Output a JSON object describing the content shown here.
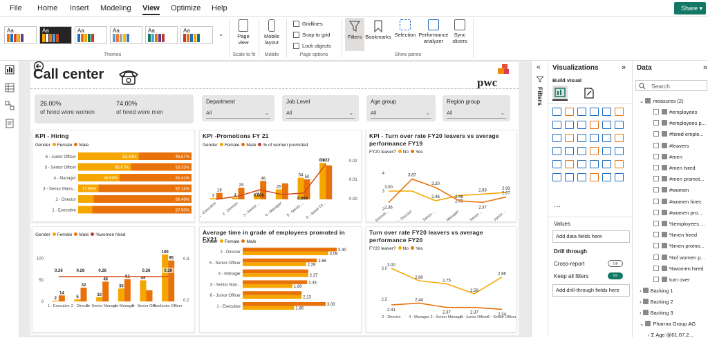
{
  "menu": {
    "items": [
      "File",
      "Home",
      "Insert",
      "Modeling",
      "View",
      "Optimize",
      "Help"
    ],
    "active": "View",
    "share": "Share"
  },
  "ribbon": {
    "themes_label": "Themes",
    "page_view": "Page view",
    "scale_label": "Scale to fit",
    "mobile_layout": "Mobile layout",
    "mobile_label": "Mobile",
    "gridlines": "Gridlines",
    "snap": "Snap to grid",
    "lock": "Lock objects",
    "page_options": "Page options",
    "filters": "Filters",
    "bookmarks": "Bookmarks",
    "selection": "Selection",
    "performance": "Performance analyzer",
    "sync": "Sync slicers",
    "show_panes": "Show panes",
    "theme_text": "Aa"
  },
  "report": {
    "title": "Call center",
    "logo": "pwc",
    "kpi": [
      {
        "value": "26.00%",
        "label": "of hired were women"
      },
      {
        "value": "74.00%",
        "label": "of hired were men"
      }
    ],
    "slicers": [
      {
        "title": "Department",
        "value": "All"
      },
      {
        "title": "Job Level",
        "value": "All"
      },
      {
        "title": "Age group",
        "value": "All"
      },
      {
        "title": "Region group",
        "value": "All"
      }
    ],
    "colors": {
      "female": "#f5a700",
      "male": "#e8710a",
      "line": "#d24a1e",
      "dark": "#c0392b"
    }
  },
  "visuals": {
    "hiring": {
      "title": "KPI - Hiring",
      "legend_title": "Gender",
      "legend": [
        "Female",
        "Male"
      ]
    },
    "promotions": {
      "title": "KPI -Promotions FY 21",
      "legend_title": "Gender",
      "legend": [
        "Female",
        "Male",
        "% of women promoted"
      ]
    },
    "turnover19": {
      "title": "KPI - Turn over rate FY20 leavers vs average performance FY19",
      "legend_title": "FY20 leaver?",
      "legend": [
        "No",
        "Yes"
      ]
    },
    "hired_women": {
      "title": "",
      "legend_title": "Gender",
      "legend": [
        "Female",
        "Male",
        "%women hired"
      ]
    },
    "avg_time": {
      "title": "Average time in grade of employees promoted in FY21",
      "legend_title": "Gender",
      "legend": [
        "Female",
        "Male"
      ]
    },
    "turnover20": {
      "title": "Turn over rate FY20 leavers vs average performance FY20",
      "legend_title": "FY20 leaver?",
      "legend": [
        "No",
        "Yes"
      ]
    }
  },
  "chart_data": [
    {
      "type": "bar",
      "orientation": "horizontal-stacked-100",
      "title": "KPI - Hiring",
      "categories": [
        "6 - Junior Officer",
        "5 - Senior Officer",
        "4 - Manager",
        "3 - Senior Mana...",
        "2 - Director",
        "1 - Executive"
      ],
      "series": [
        {
          "name": "Female",
          "values": [
            53.43,
            46.67,
            36.59,
            17.86,
            13.51,
            12.5
          ],
          "labels": [
            "53.43%",
            "46.67%",
            "36.59%",
            "17.86%",
            "",
            ""
          ]
        },
        {
          "name": "Male",
          "values": [
            46.57,
            53.33,
            63.41,
            82.14,
            86.49,
            87.5
          ],
          "labels": [
            "46.57%",
            "53.33%",
            "63.41%",
            "82.14%",
            "86.49%",
            "87.50%"
          ]
        }
      ]
    },
    {
      "type": "bar",
      "title": "KPI -Promotions FY 21",
      "categories": [
        "1 - Executive",
        "2 - Director",
        "3 - Senior ...",
        "4 - Manager",
        "5 - Senior ...",
        "6 - Junior Of..."
      ],
      "series": [
        {
          "name": "Female",
          "values": [
            3,
            4,
            11,
            25,
            54,
            91
          ],
          "labels": [
            "3",
            "4",
            "11",
            "25",
            "54",
            "91"
          ]
        },
        {
          "name": "Male",
          "values": [
            16,
            29,
            46,
            40,
            50,
            85
          ],
          "labels": [
            "16",
            "29",
            "46",
            "",
            "50",
            ""
          ]
        },
        {
          "name": "% of women promoted",
          "values": [
            0.0,
            0.002,
            0.006,
            0.003,
            0.004,
            0.022
          ],
          "labels": [
            "",
            "",
            "0.006",
            "",
            "0.004",
            "0.022"
          ]
        }
      ],
      "y2_ticks": [
        "0.02",
        "0.01",
        "0.00"
      ]
    },
    {
      "type": "line",
      "title": "KPI - Turn over rate FY20 leavers vs average performance FY19",
      "categories": [
        "1 - Executi...",
        "2 - Director",
        "3 - Senior ...",
        "4 - Manager",
        "5 - Senior ...",
        "6 - Junior ..."
      ],
      "series": [
        {
          "name": "No",
          "values": [
            3.0,
            3.0,
            2.46,
            2.75,
            2.83,
            2.93
          ],
          "labels": [
            "3.00",
            "",
            "2.46",
            "2.75",
            "2.83",
            "2.93"
          ]
        },
        {
          "name": "Yes",
          "values": [
            2.36,
            3.67,
            3.2,
            2.46,
            2.37,
            2.67
          ],
          "labels": [
            "2.36",
            "3.67",
            "3.20",
            "2.46",
            "2.37",
            "2.67"
          ]
        }
      ],
      "y_ticks": [
        "4",
        "3",
        "2"
      ]
    },
    {
      "type": "bar",
      "title": "",
      "categories": [
        "1 - Executive",
        "2 - Director",
        "3 - Senior Manager",
        "4 - Manager",
        "5 - Senior Officer",
        "6 - Junior Officer"
      ],
      "series": [
        {
          "name": "Female",
          "values": [
            2,
            5,
            10,
            30,
            49,
            109
          ],
          "labels": [
            "2",
            "5",
            "10",
            "30",
            "49",
            "109"
          ]
        },
        {
          "name": "Male",
          "values": [
            14,
            32,
            46,
            52,
            26,
            95
          ],
          "labels": [
            "14",
            "32",
            "46",
            "52",
            "",
            "95"
          ]
        },
        {
          "name": "%women hired",
          "values": [
            0.26,
            0.26,
            0.26,
            0.26,
            0.26,
            0.26
          ],
          "labels": [
            "0.26",
            "0.26",
            "0.26",
            "",
            "0.26",
            "0.26"
          ]
        }
      ],
      "y_ticks": [
        "100",
        "50",
        "0"
      ],
      "y2_ticks": [
        "0.3",
        "0.2"
      ]
    },
    {
      "type": "bar",
      "orientation": "horizontal",
      "title": "Average time in grade of employees promoted in FY21",
      "categories": [
        "2 - Director",
        "5 - Senior Officer",
        "4 - Manager",
        "3 - Senior Man...",
        "6 - Junior Officer",
        "1 - Executive"
      ],
      "series": [
        {
          "name": "Female",
          "values": [
            3.09,
            2.29,
            2.37,
            1.8,
            2.13,
            1.86
          ],
          "labels": [
            "3.09",
            "2.29",
            "2.37",
            "1.80",
            "2.13",
            "1.86"
          ]
        },
        {
          "name": "Male",
          "values": [
            3.4,
            2.68,
            2.37,
            2.33,
            2.13,
            3.0
          ],
          "labels": [
            "3.40",
            "2.68",
            "",
            "2.33",
            "",
            "3.00"
          ]
        }
      ]
    },
    {
      "type": "line",
      "title": "Turn over rate FY20 leavers vs average performance FY20",
      "categories": [
        "2 - Director",
        "4 - Manager",
        "3 - Senior Manager",
        "6 - Junior Officer",
        "5 - Senior Officer"
      ],
      "series": [
        {
          "name": "No",
          "values": [
            3.0,
            2.8,
            2.75,
            2.59,
            2.86
          ],
          "labels": [
            "3.00",
            "2.80",
            "2.75",
            "2.59",
            "2.86"
          ]
        },
        {
          "name": "Yes",
          "values": [
            2.41,
            2.44,
            2.37,
            2.37,
            2.34
          ],
          "labels": [
            "2.41",
            "2.44",
            "2.37",
            "2.37",
            "2.34"
          ]
        }
      ],
      "y_ticks": [
        "3.0",
        "2.5"
      ]
    }
  ],
  "panes": {
    "filters": "Filters",
    "visualizations": "Visualizations",
    "build_visual": "Build visual",
    "values": "Values",
    "add_data": "Add data fields here",
    "drill_through": "Drill through",
    "cross_report": "Cross-report",
    "cross_state": "Off",
    "keep_filters": "Keep all filters",
    "keep_state": "On",
    "add_drill": "Add drill-through fields here",
    "data": "Data",
    "search_placeholder": "Search",
    "tables": [
      {
        "name": "measures (2)",
        "expanded": true
      },
      {
        "name": "Backing 1",
        "expanded": false
      },
      {
        "name": "Backing 2",
        "expanded": false
      },
      {
        "name": "Backing 3",
        "expanded": false
      },
      {
        "name": "Pharma Group AG",
        "expanded": true
      }
    ],
    "fields": [
      "#employees",
      "#employees p...",
      "#hired emplo...",
      "#leavers",
      "#men",
      "#men hired",
      "#men promot...",
      "#women",
      "#women hirec",
      "#women pro...",
      "%employees ...",
      "%men hired",
      "%men promo...",
      "%of women p...",
      "%women hired",
      "turn over"
    ],
    "sub_field": "Age @01.07.2..."
  }
}
